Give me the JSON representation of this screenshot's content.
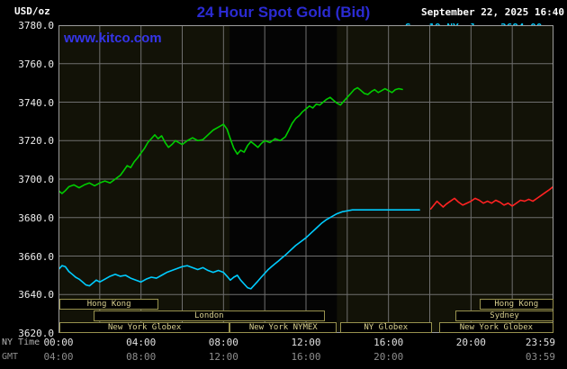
{
  "header": {
    "unit": "USD/oz",
    "title": "24 Hour Spot Gold (Bid)",
    "datetime": "September 22, 2025 16:40",
    "watermark": "www.kitco.com"
  },
  "legend": [
    {
      "label": "Sep 19 NY close 3684.00",
      "color": "#00ccff"
    },
    {
      "label": "Sep 21 Sunday",
      "color": "#ff2222"
    },
    {
      "label": "Sep 22 Last 3746.60",
      "color": "#00cc00"
    }
  ],
  "axes": {
    "ny_label": "NY Time",
    "gmt_label": "GMT",
    "y_tick_labels": [
      "3780.0",
      "3760.0",
      "3740.0",
      "3720.0",
      "3700.0",
      "3680.0",
      "3660.0",
      "3640.0",
      "3620.0"
    ]
  },
  "sessions": {
    "border_color": "#97914e",
    "text_color": "#d9d08f",
    "rows": [
      [
        {
          "label": "Hong Kong",
          "start": 0.05,
          "end": 4.85
        },
        {
          "label": "Hong Kong",
          "start": 20.4,
          "end": 24.0
        }
      ],
      [
        {
          "label": "London",
          "start": 1.7,
          "end": 12.9
        },
        {
          "label": "Sydney",
          "start": 19.25,
          "end": 24.0
        }
      ],
      [
        {
          "label": "New York Globex",
          "start": 0.05,
          "end": 8.3
        },
        {
          "label": "New York NYMEX",
          "start": 8.3,
          "end": 13.5
        },
        {
          "label": "NY Globex",
          "start": 13.65,
          "end": 18.1
        },
        {
          "label": "New York Globex",
          "start": 18.45,
          "end": 24.0
        }
      ]
    ]
  },
  "chart_data": {
    "type": "line",
    "title": "24 Hour Spot Gold (Bid)",
    "ylabel": "USD/oz",
    "ylim": [
      3620,
      3780
    ],
    "y_tick_step": 20,
    "x_hours": [
      0,
      24
    ],
    "x_grid_step_hours": 2,
    "plot_bg": "#121207",
    "band_color": "#040404",
    "grid_color": "#6f6f6f",
    "border_color": "#9c9c9c",
    "nymex_band_hours": [
      8.3,
      13.5
    ],
    "x_ticks": [
      {
        "h": 0,
        "ny": "00:00",
        "gmt": "04:00"
      },
      {
        "h": 4,
        "ny": "04:00",
        "gmt": "08:00"
      },
      {
        "h": 8,
        "ny": "08:00",
        "gmt": "12:00"
      },
      {
        "h": 12,
        "ny": "12:00",
        "gmt": "16:00"
      },
      {
        "h": 16,
        "ny": "16:00",
        "gmt": "20:00"
      },
      {
        "h": 20,
        "ny": "20:00",
        "gmt": ""
      },
      {
        "h": 24,
        "ny": "23:59",
        "gmt": "03:59"
      }
    ],
    "series": [
      {
        "name": "Sep 19 NY close",
        "color": "#00ccff",
        "last_value": 3684.0,
        "points": [
          [
            0,
            3653
          ],
          [
            0.17,
            3655
          ],
          [
            0.33,
            3654.5
          ],
          [
            0.5,
            3652
          ],
          [
            0.67,
            3650.5
          ],
          [
            0.83,
            3649
          ],
          [
            1,
            3648
          ],
          [
            1.17,
            3646.5
          ],
          [
            1.33,
            3645
          ],
          [
            1.5,
            3644.5
          ],
          [
            1.67,
            3646
          ],
          [
            1.83,
            3647.5
          ],
          [
            2,
            3646.5
          ],
          [
            2.25,
            3648
          ],
          [
            2.5,
            3649.5
          ],
          [
            2.75,
            3650.5
          ],
          [
            3,
            3649.5
          ],
          [
            3.25,
            3650
          ],
          [
            3.5,
            3648.5
          ],
          [
            3.75,
            3647.5
          ],
          [
            4,
            3646.5
          ],
          [
            4.25,
            3648
          ],
          [
            4.5,
            3649
          ],
          [
            4.75,
            3648.5
          ],
          [
            5,
            3650
          ],
          [
            5.25,
            3651.5
          ],
          [
            5.5,
            3652.5
          ],
          [
            5.75,
            3653.5
          ],
          [
            6,
            3654.5
          ],
          [
            6.25,
            3655
          ],
          [
            6.5,
            3654
          ],
          [
            6.75,
            3653
          ],
          [
            7,
            3654
          ],
          [
            7.25,
            3652.5
          ],
          [
            7.5,
            3651.5
          ],
          [
            7.75,
            3652.5
          ],
          [
            8,
            3651.5
          ],
          [
            8.17,
            3649.5
          ],
          [
            8.33,
            3647.5
          ],
          [
            8.5,
            3649
          ],
          [
            8.67,
            3650
          ],
          [
            8.83,
            3647.5
          ],
          [
            9,
            3645.5
          ],
          [
            9.17,
            3643.5
          ],
          [
            9.33,
            3643
          ],
          [
            9.5,
            3645
          ],
          [
            9.67,
            3647
          ],
          [
            9.83,
            3649
          ],
          [
            10,
            3651
          ],
          [
            10.17,
            3653
          ],
          [
            10.33,
            3654.5
          ],
          [
            10.5,
            3656
          ],
          [
            10.67,
            3657.5
          ],
          [
            10.83,
            3659
          ],
          [
            11,
            3660.5
          ],
          [
            11.25,
            3663
          ],
          [
            11.5,
            3665.5
          ],
          [
            11.75,
            3667.5
          ],
          [
            12,
            3669.5
          ],
          [
            12.25,
            3672
          ],
          [
            12.5,
            3674.5
          ],
          [
            12.75,
            3677
          ],
          [
            13,
            3679
          ],
          [
            13.25,
            3680.5
          ],
          [
            13.5,
            3682
          ],
          [
            13.75,
            3683
          ],
          [
            14,
            3683.5
          ],
          [
            14.25,
            3684
          ],
          [
            14.5,
            3684
          ],
          [
            15,
            3684
          ],
          [
            15.5,
            3684
          ],
          [
            16,
            3684
          ],
          [
            16.5,
            3684
          ],
          [
            17,
            3684
          ],
          [
            17.5,
            3684
          ]
        ]
      },
      {
        "name": "Sep 21 Sunday",
        "color": "#ff2222",
        "points": [
          [
            18.05,
            3684.5
          ],
          [
            18.2,
            3686.5
          ],
          [
            18.35,
            3688.5
          ],
          [
            18.5,
            3687
          ],
          [
            18.65,
            3685.5
          ],
          [
            18.8,
            3687
          ],
          [
            19,
            3688.5
          ],
          [
            19.2,
            3690
          ],
          [
            19.4,
            3688
          ],
          [
            19.6,
            3686.5
          ],
          [
            19.8,
            3687.5
          ],
          [
            20,
            3688.5
          ],
          [
            20.2,
            3690
          ],
          [
            20.4,
            3689
          ],
          [
            20.6,
            3687.5
          ],
          [
            20.8,
            3688.5
          ],
          [
            21,
            3687.5
          ],
          [
            21.2,
            3689
          ],
          [
            21.4,
            3688
          ],
          [
            21.6,
            3686.5
          ],
          [
            21.8,
            3687.5
          ],
          [
            22,
            3686
          ],
          [
            22.2,
            3687.5
          ],
          [
            22.4,
            3689
          ],
          [
            22.6,
            3688.5
          ],
          [
            22.8,
            3689.5
          ],
          [
            23,
            3688.5
          ],
          [
            23.2,
            3690
          ],
          [
            23.4,
            3691.5
          ],
          [
            23.6,
            3693
          ],
          [
            23.8,
            3694.5
          ],
          [
            23.98,
            3696
          ]
        ]
      },
      {
        "name": "Sep 22 Last",
        "color": "#00cc00",
        "last_value": 3746.6,
        "points": [
          [
            0,
            3694
          ],
          [
            0.17,
            3692.5
          ],
          [
            0.33,
            3694
          ],
          [
            0.5,
            3696
          ],
          [
            0.75,
            3697
          ],
          [
            1,
            3695.5
          ],
          [
            1.25,
            3697
          ],
          [
            1.5,
            3698
          ],
          [
            1.75,
            3696.5
          ],
          [
            2,
            3698
          ],
          [
            2.25,
            3699
          ],
          [
            2.5,
            3698
          ],
          [
            2.75,
            3700
          ],
          [
            3,
            3702
          ],
          [
            3.17,
            3704.5
          ],
          [
            3.33,
            3707
          ],
          [
            3.5,
            3706
          ],
          [
            3.67,
            3709
          ],
          [
            3.83,
            3711
          ],
          [
            4,
            3713.5
          ],
          [
            4.17,
            3716
          ],
          [
            4.33,
            3719
          ],
          [
            4.5,
            3721
          ],
          [
            4.67,
            3723
          ],
          [
            4.83,
            3721
          ],
          [
            5,
            3722.5
          ],
          [
            5.17,
            3719
          ],
          [
            5.33,
            3716.5
          ],
          [
            5.5,
            3718
          ],
          [
            5.67,
            3720
          ],
          [
            5.83,
            3719
          ],
          [
            6,
            3718
          ],
          [
            6.25,
            3720
          ],
          [
            6.5,
            3721.5
          ],
          [
            6.75,
            3720
          ],
          [
            7,
            3720.5
          ],
          [
            7.25,
            3723
          ],
          [
            7.5,
            3725.5
          ],
          [
            7.75,
            3727
          ],
          [
            8,
            3728.5
          ],
          [
            8.17,
            3726
          ],
          [
            8.33,
            3721
          ],
          [
            8.5,
            3716
          ],
          [
            8.67,
            3713
          ],
          [
            8.83,
            3715
          ],
          [
            9,
            3714
          ],
          [
            9.17,
            3717.5
          ],
          [
            9.33,
            3719.5
          ],
          [
            9.5,
            3718
          ],
          [
            9.67,
            3716.5
          ],
          [
            9.83,
            3718.5
          ],
          [
            10,
            3720
          ],
          [
            10.25,
            3719
          ],
          [
            10.5,
            3721
          ],
          [
            10.75,
            3720
          ],
          [
            11,
            3722
          ],
          [
            11.17,
            3725.5
          ],
          [
            11.33,
            3729
          ],
          [
            11.5,
            3731.5
          ],
          [
            11.67,
            3733
          ],
          [
            11.83,
            3735
          ],
          [
            12,
            3736.5
          ],
          [
            12.17,
            3738
          ],
          [
            12.33,
            3737
          ],
          [
            12.5,
            3739
          ],
          [
            12.67,
            3738.5
          ],
          [
            12.83,
            3740
          ],
          [
            13,
            3741.5
          ],
          [
            13.17,
            3742.5
          ],
          [
            13.33,
            3741
          ],
          [
            13.5,
            3739.5
          ],
          [
            13.67,
            3738.5
          ],
          [
            13.83,
            3740.5
          ],
          [
            14,
            3742.5
          ],
          [
            14.17,
            3744.5
          ],
          [
            14.33,
            3746.5
          ],
          [
            14.5,
            3747.5
          ],
          [
            14.67,
            3746
          ],
          [
            14.83,
            3744.5
          ],
          [
            15,
            3744
          ],
          [
            15.17,
            3745.5
          ],
          [
            15.33,
            3746.5
          ],
          [
            15.5,
            3745
          ],
          [
            15.67,
            3746
          ],
          [
            15.83,
            3747
          ],
          [
            16,
            3746
          ],
          [
            16.17,
            3745
          ],
          [
            16.33,
            3746.5
          ],
          [
            16.5,
            3747
          ],
          [
            16.67,
            3746.6
          ]
        ]
      }
    ]
  }
}
